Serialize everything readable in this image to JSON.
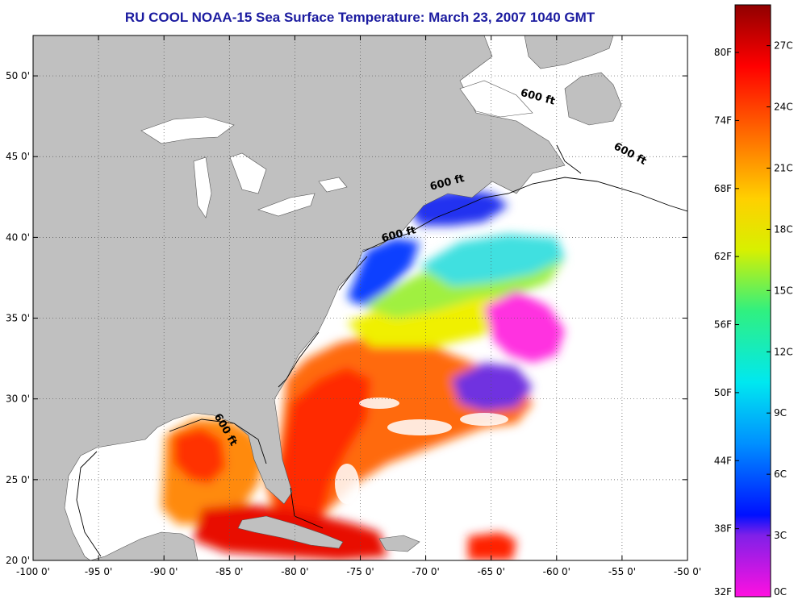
{
  "title": "RU COOL  NOAA-15  Sea Surface Temperature:  March 23, 2007 1040 GMT",
  "map": {
    "lon_range": [
      -100,
      -50
    ],
    "lat_range": [
      20,
      52.5
    ],
    "lon_ticks": [
      {
        "value": -100,
        "label": "-100 0'"
      },
      {
        "value": -95,
        "label": "-95 0'"
      },
      {
        "value": -90,
        "label": "-90 0'"
      },
      {
        "value": -85,
        "label": "-85 0'"
      },
      {
        "value": -80,
        "label": "-80 0'"
      },
      {
        "value": -75,
        "label": "-75 0'"
      },
      {
        "value": -70,
        "label": "-70 0'"
      },
      {
        "value": -65,
        "label": "-65 0'"
      },
      {
        "value": -60,
        "label": "-60 0'"
      },
      {
        "value": -55,
        "label": "-55 0'"
      },
      {
        "value": -50,
        "label": "-50 0'"
      }
    ],
    "lat_ticks": [
      {
        "value": 20,
        "label": "20 0'"
      },
      {
        "value": 25,
        "label": "25 0'"
      },
      {
        "value": 30,
        "label": "30 0'"
      },
      {
        "value": 35,
        "label": "35 0'"
      },
      {
        "value": 40,
        "label": "40 0'"
      },
      {
        "value": 45,
        "label": "45 0'"
      },
      {
        "value": 50,
        "label": "50 0'"
      }
    ],
    "grid": "dotted",
    "isobath_labels": [
      {
        "text": "600 ft",
        "lon": -61.5,
        "lat": 48.5,
        "angle": 15
      },
      {
        "text": "600 ft",
        "lon": -54.5,
        "lat": 45.0,
        "angle": 28
      },
      {
        "text": "600 ft",
        "lon": -68.3,
        "lat": 43.2,
        "angle": -15
      },
      {
        "text": "600 ft",
        "lon": -72.0,
        "lat": 40.0,
        "angle": -15
      },
      {
        "text": "600 ft",
        "lon": -85.5,
        "lat": 28.0,
        "angle": 60
      }
    ],
    "colors": {
      "land": "#c0c0c0",
      "no_data": "#ffffff",
      "grid": "#555555",
      "isobath": "#000000"
    }
  },
  "colorbar": {
    "temp_range_c": [
      0,
      29
    ],
    "celsius_ticks": [
      {
        "value": 0,
        "label": "0C"
      },
      {
        "value": 3,
        "label": "3C"
      },
      {
        "value": 6,
        "label": "6C"
      },
      {
        "value": 9,
        "label": "9C"
      },
      {
        "value": 12,
        "label": "12C"
      },
      {
        "value": 15,
        "label": "15C"
      },
      {
        "value": 18,
        "label": "18C"
      },
      {
        "value": 21,
        "label": "21C"
      },
      {
        "value": 24,
        "label": "24C"
      },
      {
        "value": 27,
        "label": "27C"
      }
    ],
    "fahrenheit_ticks": [
      {
        "value": 32,
        "label": "32F"
      },
      {
        "value": 38,
        "label": "38F"
      },
      {
        "value": 44,
        "label": "44F"
      },
      {
        "value": 50,
        "label": "50F"
      },
      {
        "value": 56,
        "label": "56F"
      },
      {
        "value": 62,
        "label": "62F"
      },
      {
        "value": 68,
        "label": "68F"
      },
      {
        "value": 74,
        "label": "74F"
      },
      {
        "value": 80,
        "label": "80F"
      }
    ],
    "stops": [
      {
        "t": 0,
        "color": "#ff10e0"
      },
      {
        "t": 3,
        "color": "#8020e8"
      },
      {
        "t": 4,
        "color": "#0010ff"
      },
      {
        "t": 7.5,
        "color": "#0090ff"
      },
      {
        "t": 10.5,
        "color": "#00e8f0"
      },
      {
        "t": 14,
        "color": "#30f080"
      },
      {
        "t": 17,
        "color": "#d8f000"
      },
      {
        "t": 19.5,
        "color": "#ffd000"
      },
      {
        "t": 22.5,
        "color": "#ff7000"
      },
      {
        "t": 26,
        "color": "#ff0000"
      },
      {
        "t": 29,
        "color": "#900000"
      }
    ]
  }
}
